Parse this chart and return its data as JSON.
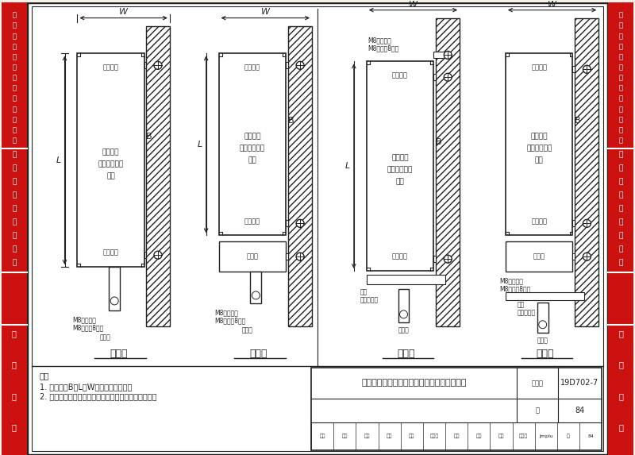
{
  "title": "集中电源装置和应急照明配电箱挂墙安装示意",
  "drawing_number": "19D702-7",
  "page": "84",
  "left_sidebar_top": "消防应急照明和疏散指示系统",
  "left_sidebar_mid": "备用照明和安全照明",
  "left_sidebar_bot": "技术资料",
  "right_sidebar_top": "消防应急照明和疏散指示系统",
  "right_sidebar_mid": "备用照明和安全照明",
  "right_sidebar_bot": "技术资料",
  "schemes": [
    "方案一",
    "方案二",
    "方案三",
    "方案四"
  ],
  "note_title": "注：",
  "note1": "1. 图中尺寸B、L、W见设备产品样本。",
  "note2": "2. 应急照明配电箱进、出线口分开设置在箱体的下部。",
  "bg_color": "#f5f2e8",
  "sidebar_red": "#cc1111",
  "line_color": "#222222",
  "white": "#ffffff"
}
